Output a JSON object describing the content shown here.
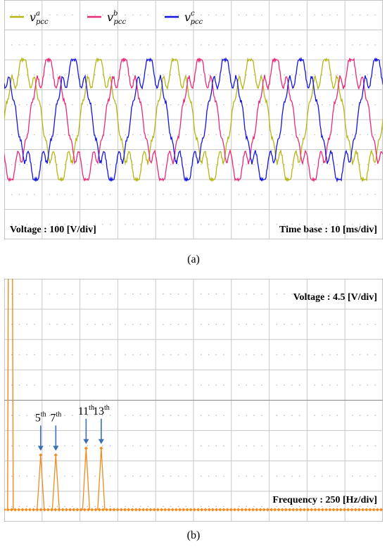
{
  "chart_data": [
    {
      "panel": "a",
      "type": "line",
      "caption": "(a)",
      "scale_labels": {
        "voltage": "Voltage : 100 [V/div]",
        "time_base": "Time base : 10 [ms/div]"
      },
      "grid": true,
      "legend_position": "top-left",
      "frequency_hz": 50,
      "amplitude_v": 200,
      "time_window_ms": [
        0,
        100
      ],
      "series": [
        {
          "name": "v_pcc^a",
          "legend_base": "v",
          "legend_sub": "pcc",
          "legend_sup": "a",
          "color": "#b5b514",
          "phase_deg": 0
        },
        {
          "name": "v_pcc^b",
          "legend_base": "v",
          "legend_sub": "pcc",
          "legend_sup": "b",
          "color": "#e8297a",
          "phase_deg": -120
        },
        {
          "name": "v_pcc^c",
          "legend_base": "v",
          "legend_sub": "pcc",
          "legend_sup": "c",
          "color": "#1414e0",
          "phase_deg": 120
        }
      ]
    },
    {
      "panel": "b",
      "type": "line",
      "caption": "(b)",
      "scale_labels": {
        "voltage": "Voltage : 4.5 [V/div]",
        "frequency": "Frequency : 250 [Hz/div]"
      },
      "grid": true,
      "line_color": "#f08c1e",
      "x_unit": "Hz",
      "x_range": [
        0,
        2500
      ],
      "fundamental": {
        "frequency_hz": 50,
        "clipped": true
      },
      "harmonics": [
        {
          "order": "5",
          "sup": "th",
          "frequency_hz": 250,
          "amplitude_v": 8.1
        },
        {
          "order": "7",
          "sup": "th",
          "frequency_hz": 350,
          "amplitude_v": 8.1
        },
        {
          "order": "11",
          "sup": "th",
          "frequency_hz": 550,
          "amplitude_v": 9.1
        },
        {
          "order": "13",
          "sup": "th",
          "frequency_hz": 650,
          "amplitude_v": 9.1
        }
      ],
      "arrow_color": "#3a6fb5"
    }
  ]
}
